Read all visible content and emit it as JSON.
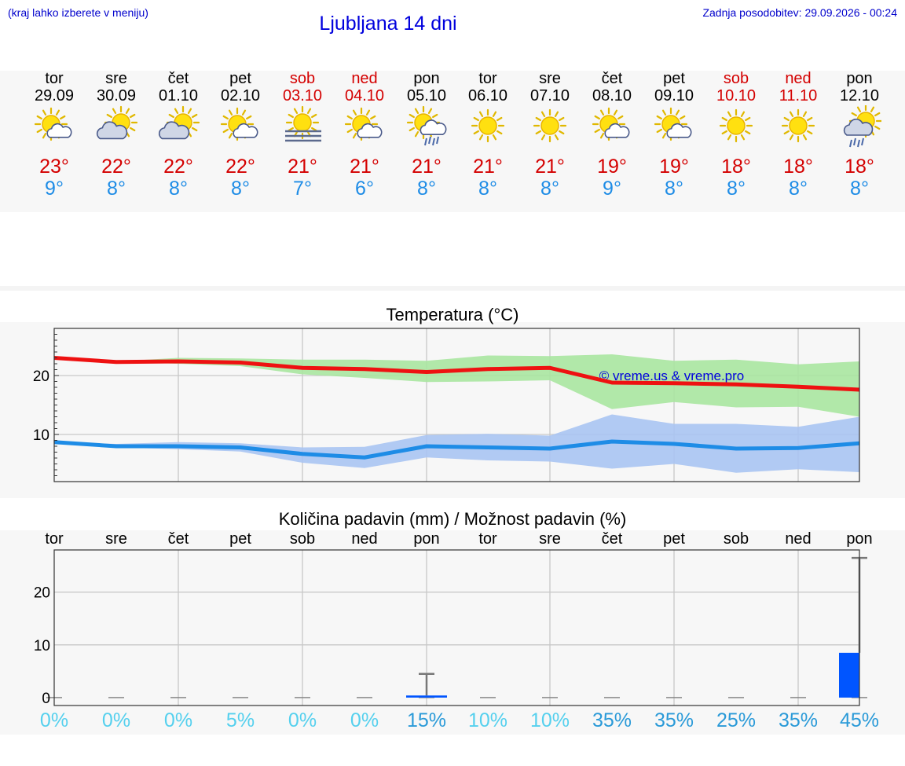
{
  "header": {
    "hint": "(kraj lahko izberete v meniju)",
    "title": "Ljubljana 14 dni",
    "updated": "Zadnja posodobitev: 29.09.2026 - 00:24"
  },
  "days": [
    {
      "name": "tor",
      "date": "29.09",
      "max": "23°",
      "min": "9°",
      "weekend": false,
      "icon": "sun-cloud",
      "pct": "0%"
    },
    {
      "name": "sre",
      "date": "30.09",
      "max": "22°",
      "min": "8°",
      "weekend": false,
      "icon": "cloud-sun",
      "pct": "0%"
    },
    {
      "name": "čet",
      "date": "01.10",
      "max": "22°",
      "min": "8°",
      "weekend": false,
      "icon": "cloud-sun",
      "pct": "0%"
    },
    {
      "name": "pet",
      "date": "02.10",
      "max": "22°",
      "min": "8°",
      "weekend": false,
      "icon": "sun-cloud",
      "pct": "5%"
    },
    {
      "name": "sob",
      "date": "03.10",
      "max": "21°",
      "min": "7°",
      "weekend": true,
      "icon": "sun-fog",
      "pct": "0%"
    },
    {
      "name": "ned",
      "date": "04.10",
      "max": "21°",
      "min": "6°",
      "weekend": true,
      "icon": "sun-cloud",
      "pct": "0%"
    },
    {
      "name": "pon",
      "date": "05.10",
      "max": "21°",
      "min": "8°",
      "weekend": false,
      "icon": "sun-cloud-rain",
      "pct": "15%"
    },
    {
      "name": "tor",
      "date": "06.10",
      "max": "21°",
      "min": "8°",
      "weekend": false,
      "icon": "sun",
      "pct": "10%"
    },
    {
      "name": "sre",
      "date": "07.10",
      "max": "21°",
      "min": "8°",
      "weekend": false,
      "icon": "sun",
      "pct": "10%"
    },
    {
      "name": "čet",
      "date": "08.10",
      "max": "19°",
      "min": "9°",
      "weekend": false,
      "icon": "sun-cloud",
      "pct": "35%"
    },
    {
      "name": "pet",
      "date": "09.10",
      "max": "19°",
      "min": "8°",
      "weekend": false,
      "icon": "sun-cloud",
      "pct": "35%"
    },
    {
      "name": "sob",
      "date": "10.10",
      "max": "18°",
      "min": "8°",
      "weekend": true,
      "icon": "sun",
      "pct": "25%"
    },
    {
      "name": "ned",
      "date": "11.10",
      "max": "18°",
      "min": "8°",
      "weekend": true,
      "icon": "sun",
      "pct": "35%"
    },
    {
      "name": "pon",
      "date": "12.10",
      "max": "18°",
      "min": "8°",
      "weekend": false,
      "icon": "cloud-rain-sun",
      "pct": "45%"
    }
  ],
  "colors": {
    "max_line": "#ee1111",
    "max_band": "#a8e6a0",
    "min_line": "#1e8ce6",
    "min_band": "#a9c4f2",
    "precip_bar": "#0055ff",
    "pct_low": "#55d0ee",
    "pct_high": "#2a9ad8"
  },
  "chart_data": [
    {
      "type": "line",
      "title": "Temperatura (°C)",
      "categories": [
        "29.09",
        "30.09",
        "01.10",
        "02.10",
        "03.10",
        "04.10",
        "05.10",
        "06.10",
        "07.10",
        "08.10",
        "09.10",
        "10.10",
        "11.10",
        "12.10"
      ],
      "ylim": [
        2,
        28
      ],
      "yticks": [
        10,
        20
      ],
      "grid": true,
      "watermark": "© vreme.us & vreme.pro",
      "series": [
        {
          "values": [
            23,
            22.3,
            22.4,
            22.2,
            21.3,
            21.1,
            20.6,
            21.1,
            21.3,
            18.8,
            18.7,
            18.5,
            18.1,
            17.6
          ],
          "band_low": [
            23,
            22.3,
            22,
            21.6,
            20.2,
            19.6,
            18.9,
            19,
            19.2,
            14.3,
            15.5,
            14.6,
            14.7,
            13
          ],
          "band_high": [
            23,
            22.4,
            23,
            22.9,
            22.7,
            22.7,
            22.5,
            23.4,
            23.3,
            23.6,
            22.5,
            22.7,
            21.9,
            22.4
          ]
        },
        {
          "values": [
            8.7,
            8,
            8,
            7.8,
            6.7,
            6.1,
            8,
            7.8,
            7.6,
            8.8,
            8.4,
            7.6,
            7.7,
            8.5
          ],
          "band_low": [
            8.7,
            7.8,
            7.5,
            7.1,
            5.2,
            4.3,
            6.1,
            5.6,
            5.4,
            4.2,
            5,
            3.5,
            4.1,
            3.6
          ],
          "band_high": [
            8.7,
            8.4,
            8.7,
            8.5,
            7.8,
            7.9,
            9.9,
            10.1,
            9.8,
            13.4,
            11.8,
            11.8,
            11.3,
            13
          ]
        }
      ]
    },
    {
      "type": "bar",
      "title": "Količina padavin (mm) / Možnost padavin (%)",
      "categories": [
        "tor",
        "sre",
        "čet",
        "pet",
        "sob",
        "ned",
        "pon",
        "tor",
        "sre",
        "čet",
        "pet",
        "sob",
        "ned",
        "pon"
      ],
      "values": [
        0,
        0,
        0,
        0,
        0,
        0,
        0.4,
        0,
        0,
        0,
        0,
        0,
        0,
        8.5
      ],
      "error_high": [
        0,
        0,
        0,
        0,
        0,
        0,
        4.5,
        0,
        0,
        0,
        0,
        0,
        0,
        26.5
      ],
      "ylim": [
        -1.5,
        28
      ],
      "yticks": [
        0,
        10,
        20
      ],
      "grid": true
    }
  ]
}
